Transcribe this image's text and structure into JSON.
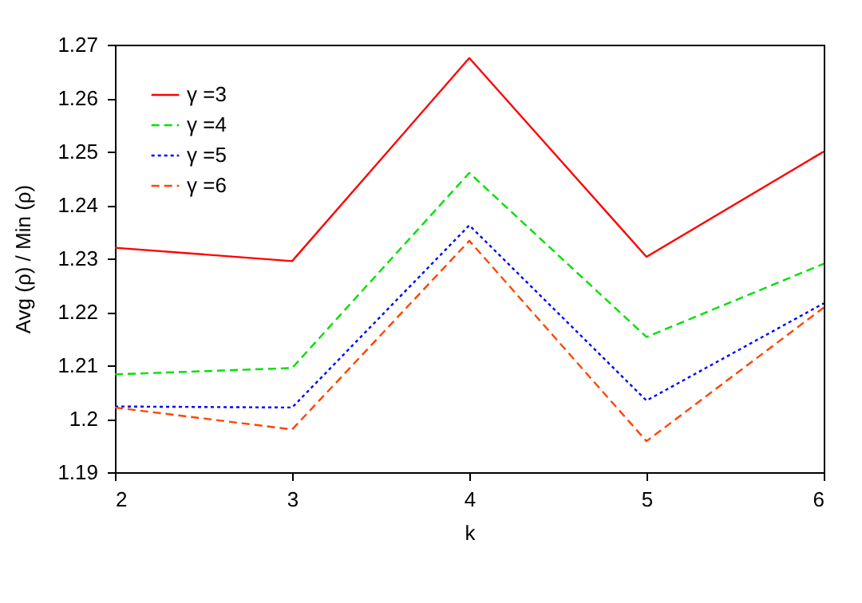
{
  "chart_data": {
    "type": "line",
    "xlabel": "k",
    "ylabel": "Avg (ρ) / Min (ρ)",
    "x": [
      2,
      3,
      4,
      5,
      6
    ],
    "xlim": [
      2,
      6
    ],
    "xticks": [
      2,
      3,
      4,
      5,
      6
    ],
    "ylim": [
      1.19,
      1.27
    ],
    "yticks": [
      1.19,
      1.2,
      1.21,
      1.22,
      1.23,
      1.24,
      1.25,
      1.26,
      1.27
    ],
    "grid": false,
    "legend": "top left",
    "marker": "none",
    "series": [
      {
        "name": "γ =3",
        "color": "#ff0000",
        "line_style": "solid",
        "values": [
          1.232,
          1.2295,
          1.2675,
          1.2303,
          1.25
        ]
      },
      {
        "name": "γ =4",
        "color": "#00e000",
        "line_style": "dashed",
        "values": [
          1.2083,
          1.2095,
          1.246,
          1.2153,
          1.229
        ]
      },
      {
        "name": "γ =5",
        "color": "#0000ff",
        "line_style": "dotted",
        "values": [
          1.2023,
          1.2021,
          1.2362,
          1.2034,
          1.2216
        ]
      },
      {
        "name": "γ =6",
        "color": "#ff4500",
        "line_style": "dashed",
        "values": [
          1.2021,
          1.198,
          1.2333,
          1.1958,
          1.2208
        ]
      }
    ]
  }
}
